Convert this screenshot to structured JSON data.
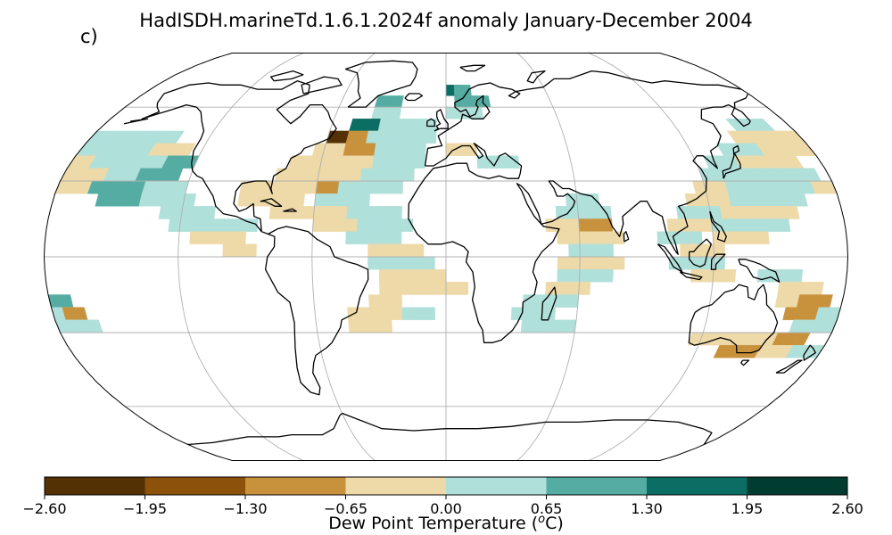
{
  "title": "HadISDH.marineTd.1.6.1.2024f anomaly January-December 2004",
  "panel_label": "c)",
  "colorbar": {
    "label_prefix": "Dew Point Temperature (",
    "label_sup": "o",
    "label_suffix": "C)",
    "ticks": [
      "−2.60",
      "−1.95",
      "−1.30",
      "−0.65",
      "0.00",
      "0.65",
      "1.30",
      "1.95",
      "2.60"
    ],
    "colors": [
      "#543005",
      "#8c510a",
      "#c8923d",
      "#eed9a8",
      "#b0e0da",
      "#55aca2",
      "#0b6d64",
      "#003c30"
    ]
  },
  "chart_data": {
    "type": "heatmap",
    "projection": "Robinson",
    "variable": "Dew Point Temperature anomaly",
    "unit": "oC",
    "period": "January-December 2004",
    "value_range": [
      -2.6,
      2.6
    ],
    "levels": [
      -2.6,
      -1.95,
      -1.3,
      -0.65,
      0.0,
      0.65,
      1.3,
      1.95,
      2.6
    ],
    "gridlines": {
      "longitudes": [
        -120,
        -60,
        0,
        60,
        120
      ],
      "latitudes": [
        -60,
        -30,
        0,
        30,
        60
      ]
    },
    "colors": {
      "coastline": "#000000",
      "grid": "#b0b0b0"
    }
  }
}
